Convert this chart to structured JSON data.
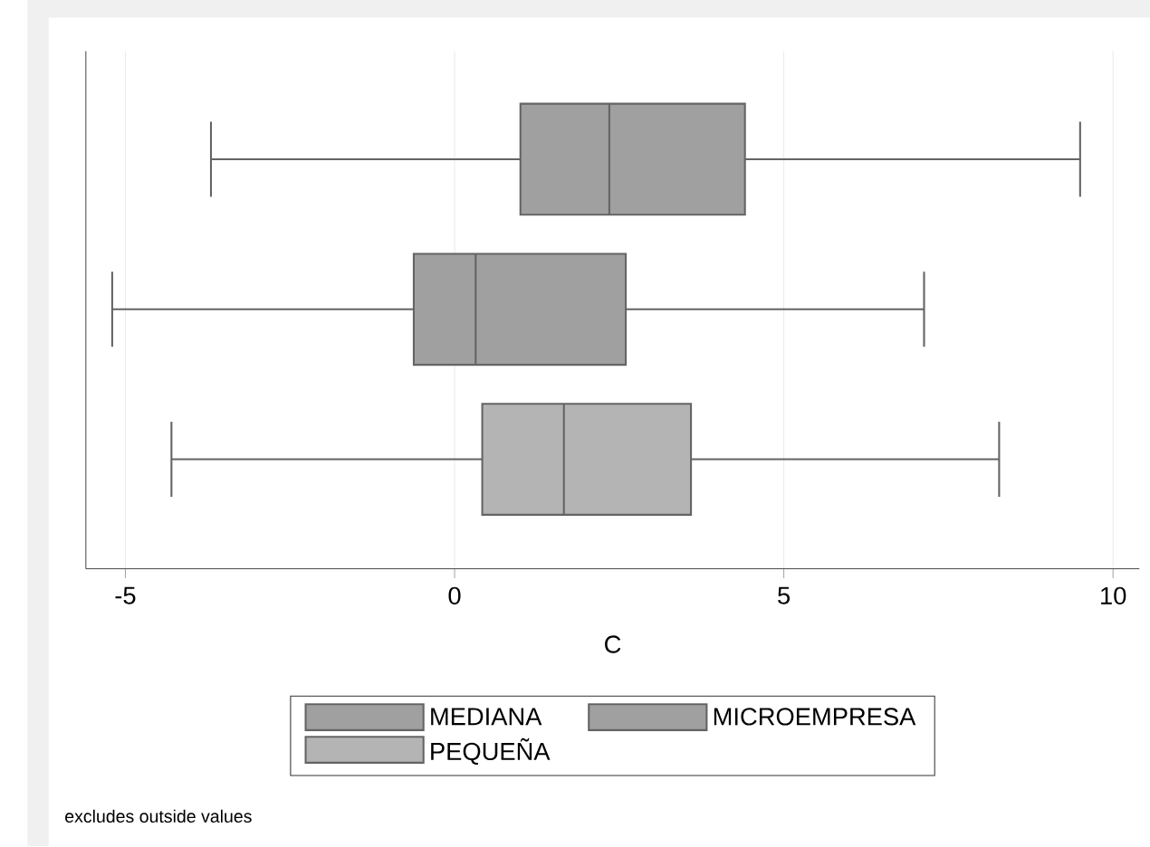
{
  "chart_data": {
    "type": "box",
    "orientation": "horizontal",
    "xlabel": "C",
    "categories": [
      null
    ],
    "series": [
      {
        "name": "MEDIANA",
        "color": "#a0a0a0",
        "boxes": [
          {
            "low": -3.7,
            "q1": 1.0,
            "median": 2.35,
            "q3": 4.41,
            "high": 9.5
          }
        ]
      },
      {
        "name": "MICROEMPRESA",
        "color": "#a0a0a0",
        "boxes": [
          {
            "low": -5.2,
            "q1": -0.62,
            "median": 0.32,
            "q3": 2.6,
            "high": 7.13
          }
        ]
      },
      {
        "name": "PEQUEÑA",
        "color": "#b4b4b4",
        "boxes": [
          {
            "low": -4.3,
            "q1": 0.42,
            "median": 1.66,
            "q3": 3.59,
            "high": 8.27
          }
        ]
      }
    ],
    "xlim": [
      -5.6,
      10.4
    ],
    "xticks": [
      -5,
      0,
      5,
      10
    ],
    "grid": "x",
    "legend": "bottom",
    "annotations": [
      "excludes outside values"
    ]
  }
}
